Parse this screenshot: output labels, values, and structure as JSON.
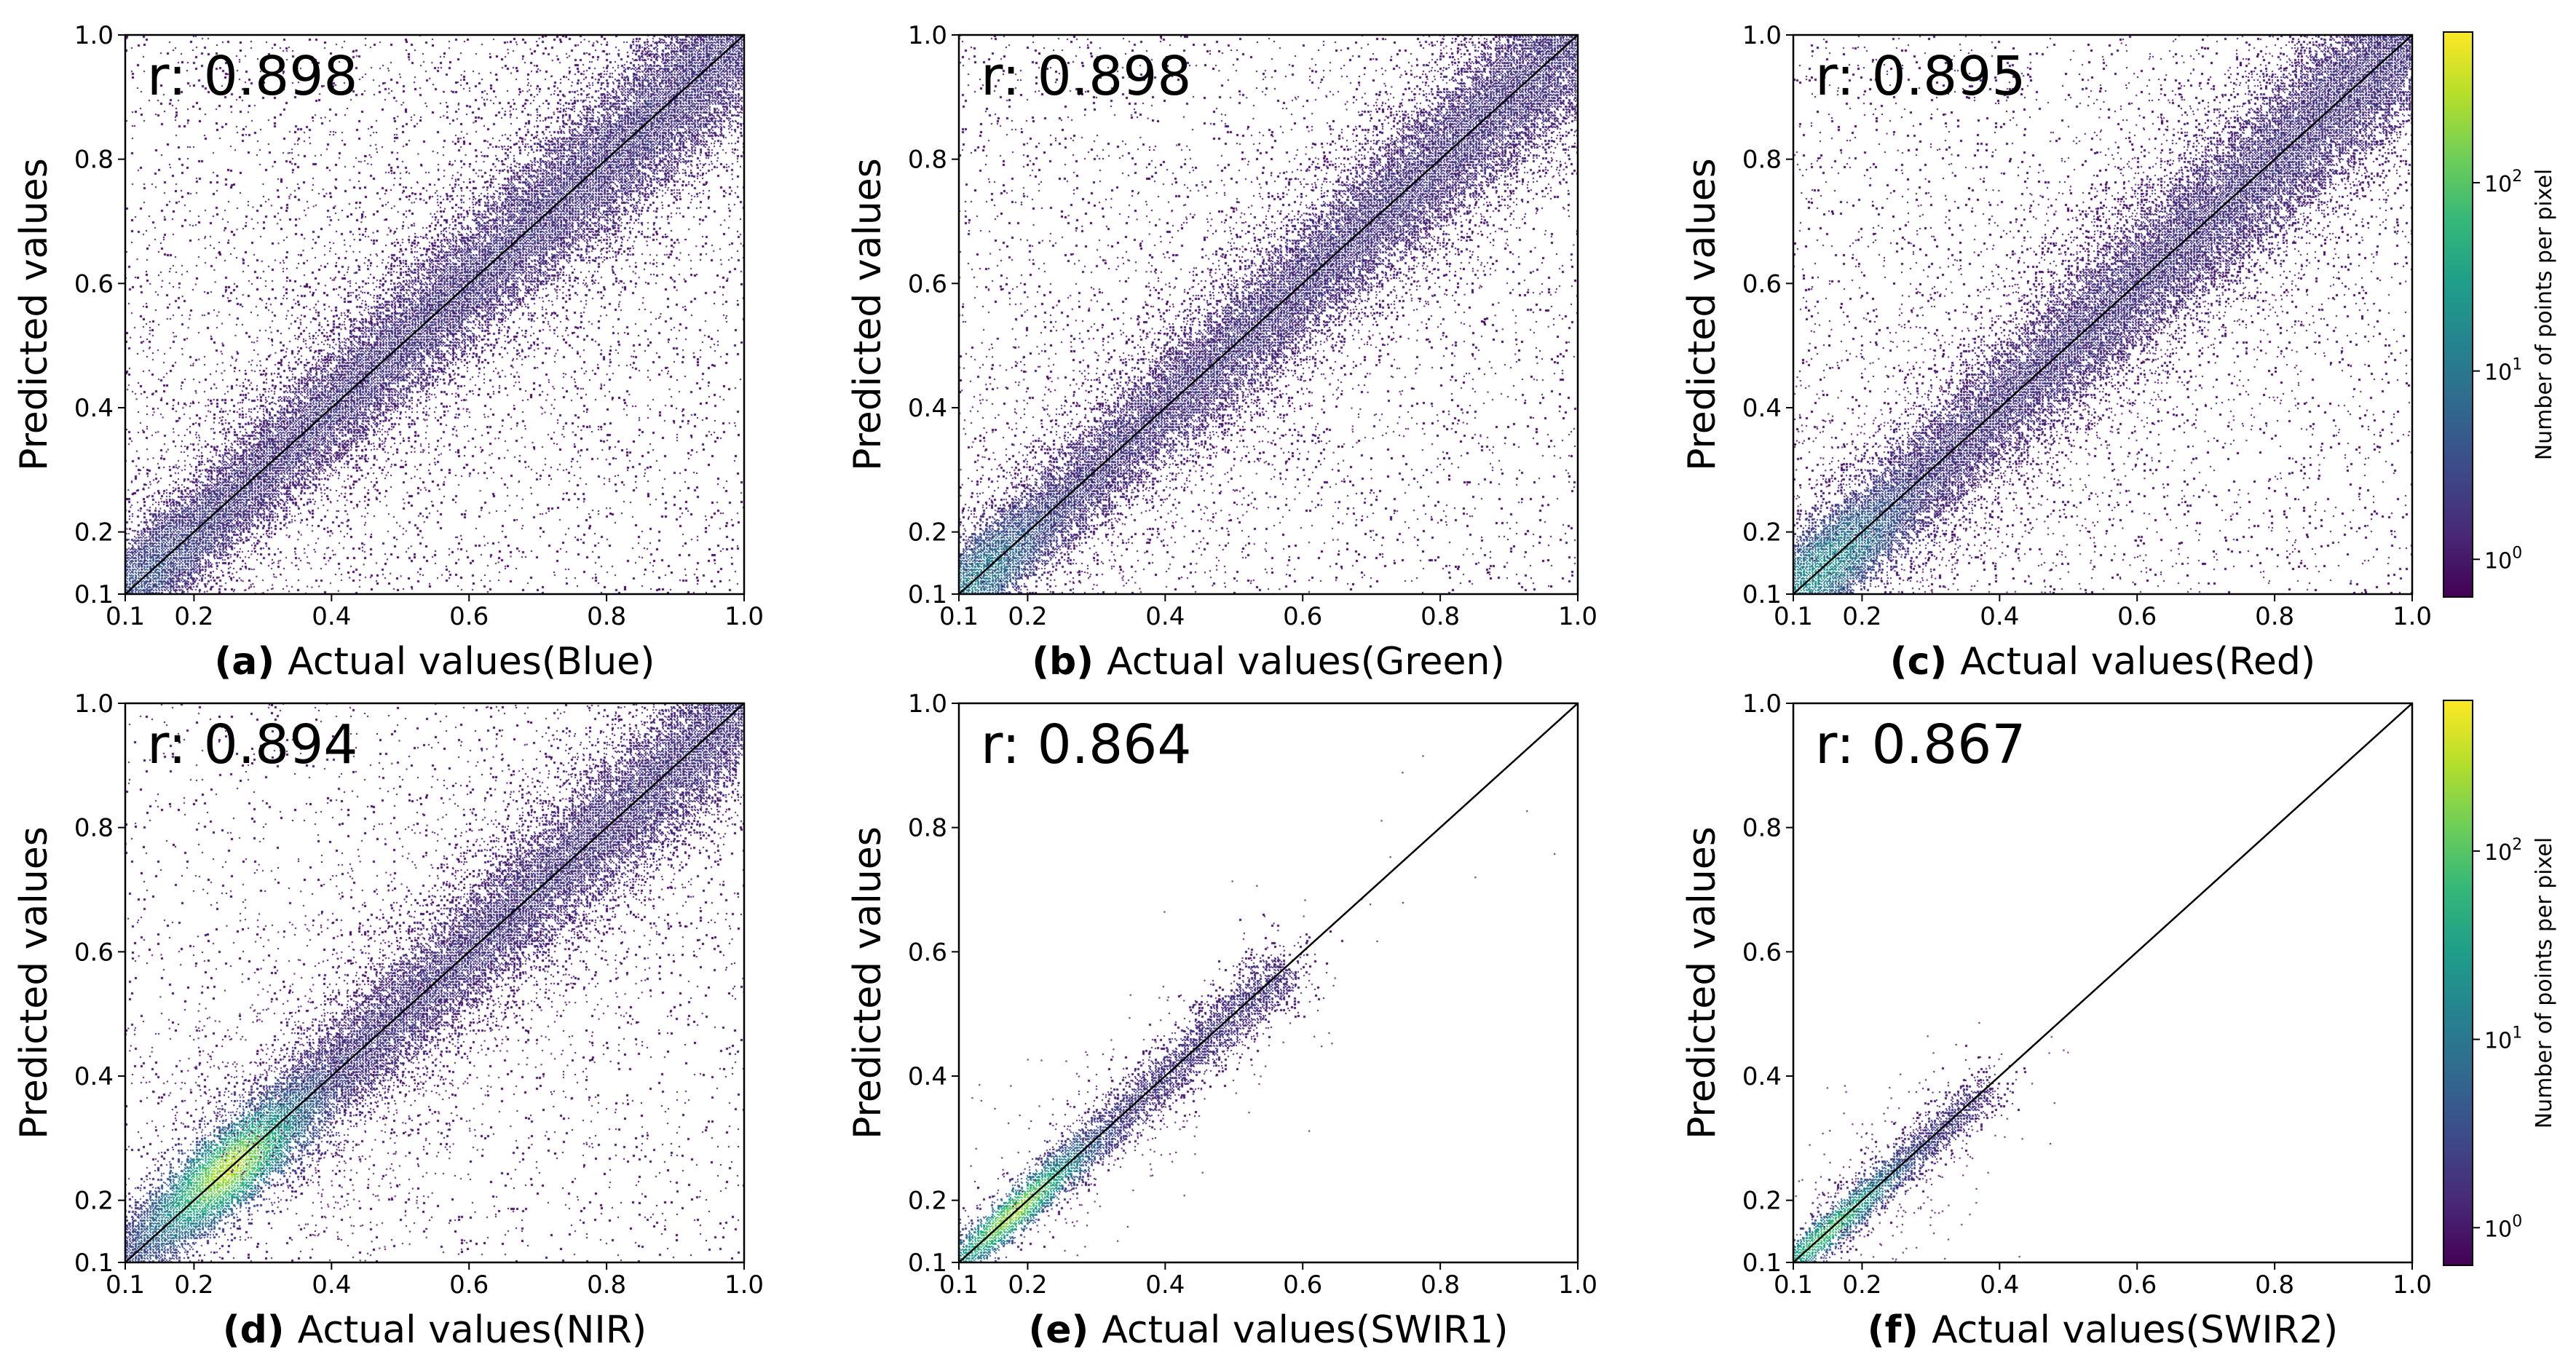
{
  "chart_data": [
    {
      "type": "scatter",
      "panel_label": "(a)",
      "xlabel": "Actual values(Blue)",
      "ylabel": "Predicted values",
      "r_label": "r: 0.898",
      "xlim": [
        0.1,
        1.0
      ],
      "ylim": [
        0.1,
        1.0
      ],
      "xticks": [
        "0.1",
        "0.2",
        "0.4",
        "0.6",
        "0.8",
        "1.0"
      ],
      "yticks": [
        "0.1",
        "0.2",
        "0.4",
        "0.6",
        "0.8",
        "1.0"
      ],
      "density": {
        "center_x": 0.12,
        "center_y": 0.12,
        "extent": 1.0,
        "spread": 0.085,
        "uniform": 0.25,
        "peak_log10": 0.3
      },
      "reference_line": {
        "from": [
          0.1,
          0.1
        ],
        "to": [
          1.0,
          1.0
        ]
      }
    },
    {
      "type": "scatter",
      "panel_label": "(b)",
      "xlabel": "Actual values(Green)",
      "ylabel": "Predicted values",
      "r_label": "r: 0.898",
      "xlim": [
        0.1,
        1.0
      ],
      "ylim": [
        0.1,
        1.0
      ],
      "xticks": [
        "0.1",
        "0.2",
        "0.4",
        "0.6",
        "0.8",
        "1.0"
      ],
      "yticks": [
        "0.1",
        "0.2",
        "0.4",
        "0.6",
        "0.8",
        "1.0"
      ],
      "density": {
        "center_x": 0.12,
        "center_y": 0.12,
        "extent": 1.0,
        "spread": 0.08,
        "uniform": 0.2,
        "peak_log10": 0.8
      },
      "reference_line": {
        "from": [
          0.1,
          0.1
        ],
        "to": [
          1.0,
          1.0
        ]
      }
    },
    {
      "type": "scatter",
      "panel_label": "(c)",
      "xlabel": "Actual values(Red)",
      "ylabel": "Predicted values",
      "r_label": "r: 0.895",
      "xlim": [
        0.1,
        1.0
      ],
      "ylim": [
        0.1,
        1.0
      ],
      "xticks": [
        "0.1",
        "0.2",
        "0.4",
        "0.6",
        "0.8",
        "1.0"
      ],
      "yticks": [
        "0.1",
        "0.2",
        "0.4",
        "0.6",
        "0.8",
        "1.0"
      ],
      "density": {
        "center_x": 0.14,
        "center_y": 0.14,
        "extent": 1.0,
        "spread": 0.085,
        "uniform": 0.2,
        "peak_log10": 1.0
      },
      "reference_line": {
        "from": [
          0.1,
          0.1
        ],
        "to": [
          1.0,
          1.0
        ]
      }
    },
    {
      "type": "scatter",
      "panel_label": "(d)",
      "xlabel": "Actual values(NIR)",
      "ylabel": "Predicted values",
      "r_label": "r: 0.894",
      "xlim": [
        0.1,
        1.0
      ],
      "ylim": [
        0.1,
        1.0
      ],
      "xticks": [
        "0.1",
        "0.2",
        "0.4",
        "0.6",
        "0.8",
        "1.0"
      ],
      "yticks": [
        "0.1",
        "0.2",
        "0.4",
        "0.6",
        "0.8",
        "1.0"
      ],
      "density": {
        "center_x": 0.25,
        "center_y": 0.25,
        "extent": 1.0,
        "spread": 0.075,
        "uniform": 0.15,
        "peak_log10": 2.2
      },
      "reference_line": {
        "from": [
          0.1,
          0.1
        ],
        "to": [
          1.0,
          1.0
        ]
      }
    },
    {
      "type": "scatter",
      "panel_label": "(e)",
      "xlabel": "Actual values(SWIR1)",
      "ylabel": "Predicted values",
      "r_label": "r: 0.864",
      "xlim": [
        0.1,
        1.0
      ],
      "ylim": [
        0.1,
        1.0
      ],
      "xticks": [
        "0.1",
        "0.2",
        "0.4",
        "0.6",
        "0.8",
        "1.0"
      ],
      "yticks": [
        "0.1",
        "0.2",
        "0.4",
        "0.6",
        "0.8",
        "1.0"
      ],
      "density": {
        "center_x": 0.18,
        "center_y": 0.18,
        "extent": 0.55,
        "spread": 0.04,
        "uniform": 0.0,
        "peak_log10": 2.1
      },
      "reference_line": {
        "from": [
          0.1,
          0.1
        ],
        "to": [
          1.0,
          1.0
        ]
      }
    },
    {
      "type": "scatter",
      "panel_label": "(f)",
      "xlabel": "Actual values(SWIR2)",
      "ylabel": "Predicted values",
      "r_label": "r: 0.867",
      "xlim": [
        0.1,
        1.0
      ],
      "ylim": [
        0.1,
        1.0
      ],
      "xticks": [
        "0.1",
        "0.2",
        "0.4",
        "0.6",
        "0.8",
        "1.0"
      ],
      "yticks": [
        "0.1",
        "0.2",
        "0.4",
        "0.6",
        "0.8",
        "1.0"
      ],
      "density": {
        "center_x": 0.15,
        "center_y": 0.15,
        "extent": 0.35,
        "spread": 0.035,
        "uniform": 0.0,
        "peak_log10": 1.7
      },
      "reference_line": {
        "from": [
          0.1,
          0.1
        ],
        "to": [
          1.0,
          1.0
        ]
      }
    }
  ],
  "colorbars": [
    {
      "label": "Number of points per pixel",
      "ticks": [
        "10",
        "10",
        "10"
      ],
      "exponents": [
        "0",
        "1",
        "2"
      ],
      "tick_values_log10": [
        0,
        1,
        2
      ],
      "range_log10": [
        -0.2,
        2.8
      ],
      "colormap": "viridis"
    },
    {
      "label": "Number of points per pixel",
      "ticks": [
        "10",
        "10",
        "10"
      ],
      "exponents": [
        "0",
        "1",
        "2"
      ],
      "tick_values_log10": [
        0,
        1,
        2
      ],
      "range_log10": [
        -0.2,
        2.8
      ],
      "colormap": "viridis"
    }
  ],
  "colors": {
    "viridis": [
      "#440154",
      "#482878",
      "#3e4989",
      "#31688e",
      "#26828e",
      "#1f9e89",
      "#35b779",
      "#6ece58",
      "#b5de2b",
      "#fde725"
    ],
    "line": "#000000",
    "axes": "#000000"
  }
}
